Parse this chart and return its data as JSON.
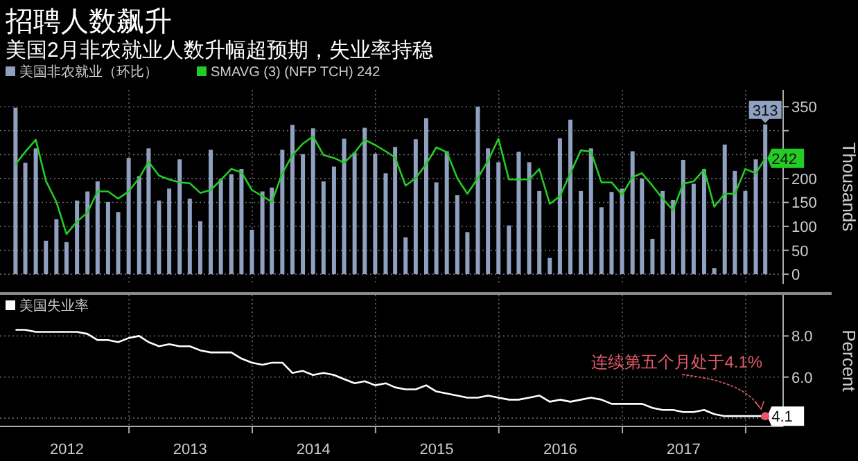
{
  "chart_data": [
    {
      "type": "bar",
      "title": "招聘人数飙升",
      "subtitle": "美国2月非农就业人数升幅超预期，失业率持稳",
      "ylabel": "Thousands",
      "legend": "top left",
      "grid": true,
      "tick_labels": "y",
      "x": [
        "2012-01-31",
        "2012-02-29",
        "2012-03-31",
        "2012-04-30",
        "2012-05-31",
        "2012-06-30",
        "2012-07-31",
        "2012-08-31",
        "2012-09-30",
        "2012-10-31",
        "2012-11-30",
        "2012-12-31",
        "2013-01-31",
        "2013-02-28",
        "2013-03-31",
        "2013-04-30",
        "2013-05-31",
        "2013-06-30",
        "2013-07-31",
        "2013-08-31",
        "2013-09-30",
        "2013-10-31",
        "2013-11-30",
        "2013-12-31",
        "2014-01-31",
        "2014-02-28",
        "2014-03-31",
        "2014-04-30",
        "2014-05-31",
        "2014-06-30",
        "2014-07-31",
        "2014-08-31",
        "2014-09-30",
        "2014-10-31",
        "2014-11-30",
        "2014-12-31",
        "2015-01-31",
        "2015-02-28",
        "2015-03-31",
        "2015-04-30",
        "2015-05-31",
        "2015-06-30",
        "2015-07-31",
        "2015-08-31",
        "2015-09-30",
        "2015-10-31",
        "2015-11-30",
        "2015-12-31",
        "2016-01-31",
        "2016-02-29",
        "2016-03-31",
        "2016-04-30",
        "2016-05-31",
        "2016-06-30",
        "2016-07-31",
        "2016-08-31",
        "2016-09-30",
        "2016-10-31",
        "2016-11-30",
        "2016-12-31",
        "2017-01-31",
        "2017-02-28",
        "2017-03-31",
        "2017-04-30",
        "2017-05-31",
        "2017-06-30",
        "2017-07-31",
        "2017-08-31",
        "2017-09-30",
        "2017-10-31",
        "2017-11-30",
        "2017-12-31",
        "2018-01-31",
        "2018-02-28"
      ],
      "xlim": [
        "2011-12-16",
        "2018-04-22"
      ],
      "xticks": [
        {
          "value": "2013-01-01",
          "label": null
        },
        {
          "value": "2014-01-01",
          "label": null
        },
        {
          "value": "2015-01-01",
          "label": null
        },
        {
          "value": "2016-01-01",
          "label": null
        },
        {
          "value": "2017-01-01",
          "label": null
        },
        {
          "value": "2018-01-01",
          "label": null
        }
      ],
      "ylim": [
        -20,
        385
      ],
      "yticks": [
        0,
        50,
        100,
        150,
        200,
        {
          "value": 250,
          "label": null
        },
        {
          "value": 300,
          "label": null
        },
        350
      ],
      "series": [
        {
          "name": "美国非农就业（环比）",
          "type": "bar",
          "color": "#8fa0c0",
          "values": [
            348,
            233,
            263,
            70,
            115,
            67,
            154,
            173,
            194,
            151,
            130,
            243,
            205,
            263,
            154,
            179,
            240,
            158,
            111,
            260,
            199,
            209,
            220,
            93,
            173,
            181,
            260,
            312,
            251,
            305,
            194,
            225,
            283,
            254,
            306,
            252,
            211,
            266,
            77,
            282,
            326,
            192,
            257,
            165,
            88,
            350,
            263,
            234,
            102,
            256,
            234,
            174,
            34,
            284,
            323,
            174,
            263,
            140,
            172,
            179,
            257,
            200,
            74,
            174,
            155,
            239,
            189,
            220,
            13,
            271,
            216,
            174,
            240,
            313
          ],
          "value_labels": [
            null,
            null,
            null,
            null,
            null,
            null,
            null,
            null,
            null,
            null,
            null,
            null,
            null,
            null,
            null,
            null,
            null,
            null,
            null,
            null,
            null,
            null,
            null,
            null,
            null,
            null,
            null,
            null,
            null,
            null,
            null,
            null,
            null,
            null,
            null,
            null,
            null,
            null,
            null,
            null,
            null,
            null,
            null,
            null,
            null,
            null,
            null,
            null,
            null,
            null,
            null,
            null,
            null,
            null,
            null,
            null,
            null,
            null,
            null,
            null,
            null,
            null,
            null,
            null,
            null,
            null,
            null,
            null,
            null,
            null,
            null,
            null,
            null,
            "313"
          ]
        },
        {
          "name": "SMAVG (3) (NFP TCH) 242",
          "type": "line",
          "color": "#22cc22",
          "values": [
            230,
            256,
            281,
            195,
            151,
            84,
            110,
            129,
            173,
            173,
            158,
            173,
            201,
            235,
            206,
            198,
            192,
            190,
            170,
            176,
            197,
            220,
            213,
            176,
            163,
            151,
            211,
            249,
            273,
            288,
            249,
            243,
            233,
            254,
            281,
            270,
            257,
            244,
            185,
            201,
            230,
            265,
            255,
            201,
            168,
            201,
            237,
            283,
            198,
            198,
            198,
            220,
            147,
            163,
            211,
            259,
            256,
            192,
            192,
            166,
            203,
            211,
            185,
            158,
            134,
            189,
            194,
            219,
            141,
            168,
            168,
            220,
            211,
            242
          ],
          "value_labels": [
            null,
            null,
            null,
            null,
            null,
            null,
            null,
            null,
            null,
            null,
            null,
            null,
            null,
            null,
            null,
            null,
            null,
            null,
            null,
            null,
            null,
            null,
            null,
            null,
            null,
            null,
            null,
            null,
            null,
            null,
            null,
            null,
            null,
            null,
            null,
            null,
            null,
            null,
            null,
            null,
            null,
            null,
            null,
            null,
            null,
            null,
            null,
            null,
            null,
            null,
            null,
            null,
            null,
            null,
            null,
            null,
            null,
            null,
            null,
            null,
            null,
            null,
            null,
            null,
            null,
            null,
            null,
            null,
            null,
            null,
            null,
            null,
            null,
            "242"
          ]
        }
      ]
    },
    {
      "type": "line",
      "ylabel": "Percent",
      "legend": "top left",
      "grid": true,
      "x": [
        "2012-01-31",
        "2012-02-29",
        "2012-03-31",
        "2012-04-30",
        "2012-05-31",
        "2012-06-30",
        "2012-07-31",
        "2012-08-31",
        "2012-09-30",
        "2012-10-31",
        "2012-11-30",
        "2012-12-31",
        "2013-01-31",
        "2013-02-28",
        "2013-03-31",
        "2013-04-30",
        "2013-05-31",
        "2013-06-30",
        "2013-07-31",
        "2013-08-31",
        "2013-09-30",
        "2013-10-31",
        "2013-11-30",
        "2013-12-31",
        "2014-01-31",
        "2014-02-28",
        "2014-03-31",
        "2014-04-30",
        "2014-05-31",
        "2014-06-30",
        "2014-07-31",
        "2014-08-31",
        "2014-09-30",
        "2014-10-31",
        "2014-11-30",
        "2014-12-31",
        "2015-01-31",
        "2015-02-28",
        "2015-03-31",
        "2015-04-30",
        "2015-05-31",
        "2015-06-30",
        "2015-07-31",
        "2015-08-31",
        "2015-09-30",
        "2015-10-31",
        "2015-11-30",
        "2015-12-31",
        "2016-01-31",
        "2016-02-29",
        "2016-03-31",
        "2016-04-30",
        "2016-05-31",
        "2016-06-30",
        "2016-07-31",
        "2016-08-31",
        "2016-09-30",
        "2016-10-31",
        "2016-11-30",
        "2016-12-31",
        "2017-01-31",
        "2017-02-28",
        "2017-03-31",
        "2017-04-30",
        "2017-05-31",
        "2017-06-30",
        "2017-07-31",
        "2017-08-31",
        "2017-09-30",
        "2017-10-31",
        "2017-11-30",
        "2017-12-31",
        "2018-01-31",
        "2018-02-28"
      ],
      "xlim": [
        "2011-12-16",
        "2018-04-22"
      ],
      "xticks": [
        {
          "value": "2012-07-01",
          "label": "2012"
        },
        {
          "value": "2013-01-01",
          "label": null
        },
        {
          "value": "2013-07-01",
          "label": "2013"
        },
        {
          "value": "2014-01-01",
          "label": null
        },
        {
          "value": "2014-07-01",
          "label": "2014"
        },
        {
          "value": "2015-01-01",
          "label": null
        },
        {
          "value": "2015-07-01",
          "label": "2015"
        },
        {
          "value": "2016-01-01",
          "label": null
        },
        {
          "value": "2016-07-01",
          "label": "2016"
        },
        {
          "value": "2017-01-01",
          "label": null
        },
        {
          "value": "2017-07-01",
          "label": "2017"
        },
        {
          "value": "2018-01-01",
          "label": null
        }
      ],
      "ylim": [
        3.6,
        10
      ],
      "yticks": [
        {
          "value": 4,
          "label": null
        },
        {
          "value": 6,
          "label": "6.0"
        },
        {
          "value": 8,
          "label": "8.0"
        }
      ],
      "annotations": [
        {
          "text": "连续第五个月处于4.1%",
          "x": "2018-02-28",
          "y": 4.1
        }
      ],
      "series": [
        {
          "name": "美国失业率",
          "color": "#ffffff",
          "values": [
            8.3,
            8.3,
            8.2,
            8.2,
            8.2,
            8.2,
            8.2,
            8.1,
            7.8,
            7.8,
            7.7,
            7.9,
            8.0,
            7.7,
            7.5,
            7.6,
            7.5,
            7.5,
            7.3,
            7.2,
            7.2,
            7.2,
            6.9,
            6.7,
            6.6,
            6.7,
            6.7,
            6.2,
            6.3,
            6.1,
            6.2,
            6.1,
            5.9,
            5.7,
            5.8,
            5.6,
            5.7,
            5.5,
            5.4,
            5.4,
            5.6,
            5.3,
            5.2,
            5.1,
            5.0,
            5.0,
            5.1,
            5.0,
            4.9,
            4.9,
            5.0,
            5.1,
            4.8,
            4.9,
            4.8,
            4.9,
            5.0,
            4.9,
            4.7,
            4.7,
            4.7,
            4.7,
            4.5,
            4.4,
            4.4,
            4.3,
            4.3,
            4.4,
            4.2,
            4.1,
            4.1,
            4.1,
            4.1,
            4.1
          ],
          "value_labels": [
            null,
            null,
            null,
            null,
            null,
            null,
            null,
            null,
            null,
            null,
            null,
            null,
            null,
            null,
            null,
            null,
            null,
            null,
            null,
            null,
            null,
            null,
            null,
            null,
            null,
            null,
            null,
            null,
            null,
            null,
            null,
            null,
            null,
            null,
            null,
            null,
            null,
            null,
            null,
            null,
            null,
            null,
            null,
            null,
            null,
            null,
            null,
            null,
            null,
            null,
            null,
            null,
            null,
            null,
            null,
            null,
            null,
            null,
            null,
            null,
            null,
            null,
            null,
            null,
            null,
            null,
            null,
            null,
            null,
            null,
            null,
            null,
            null,
            "4.1"
          ]
        }
      ]
    }
  ]
}
